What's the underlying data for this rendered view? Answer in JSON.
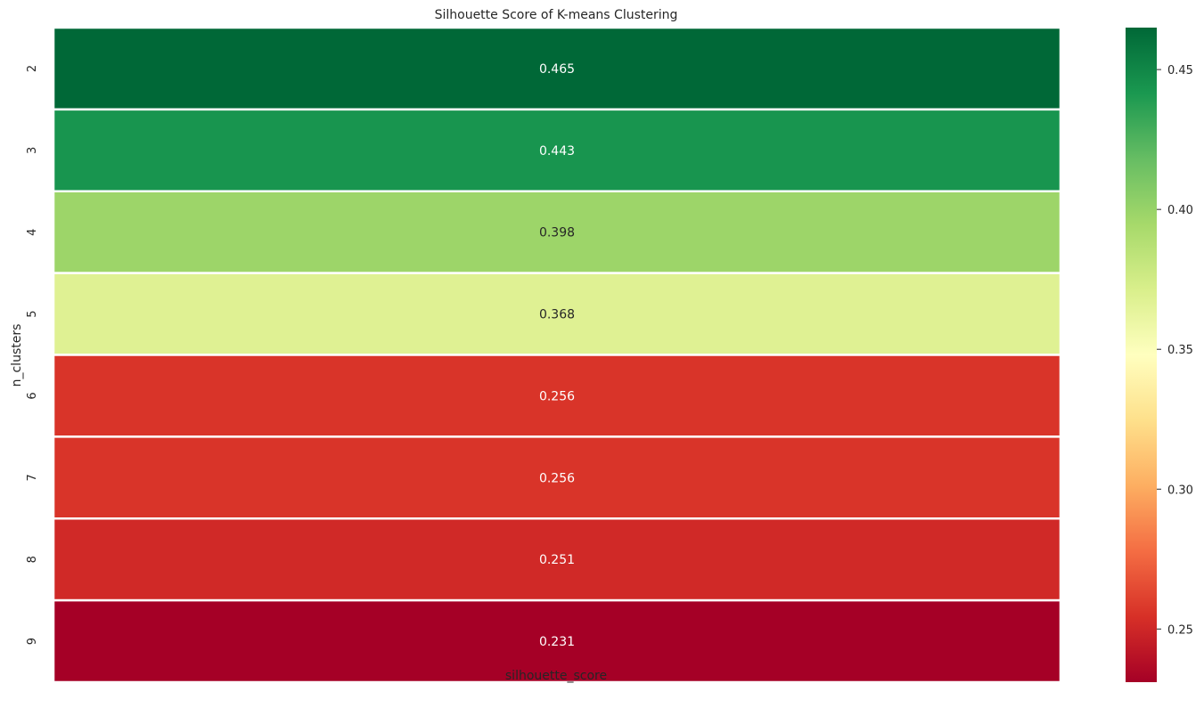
{
  "chart_data": {
    "type": "heatmap",
    "title": "Silhouette Score of K-means Clustering",
    "xlabel": "",
    "ylabel": "n_clusters",
    "columns": [
      "silhouette_score"
    ],
    "rows": [
      "2",
      "3",
      "4",
      "5",
      "6",
      "7",
      "8",
      "9"
    ],
    "values": [
      0.465,
      0.443,
      0.398,
      0.368,
      0.256,
      0.256,
      0.251,
      0.231
    ],
    "value_labels": [
      "0.465",
      "0.443",
      "0.398",
      "0.368",
      "0.256",
      "0.256",
      "0.251",
      "0.231"
    ],
    "colormap": "RdYlGn",
    "vmin": 0.231,
    "vmax": 0.465,
    "colorbar": {
      "ticks": [
        0.25,
        0.3,
        0.35,
        0.4,
        0.45
      ],
      "tick_labels": [
        "0.25",
        "0.30",
        "0.35",
        "0.40",
        "0.45"
      ]
    },
    "cell_border_color": "#ffffff"
  }
}
